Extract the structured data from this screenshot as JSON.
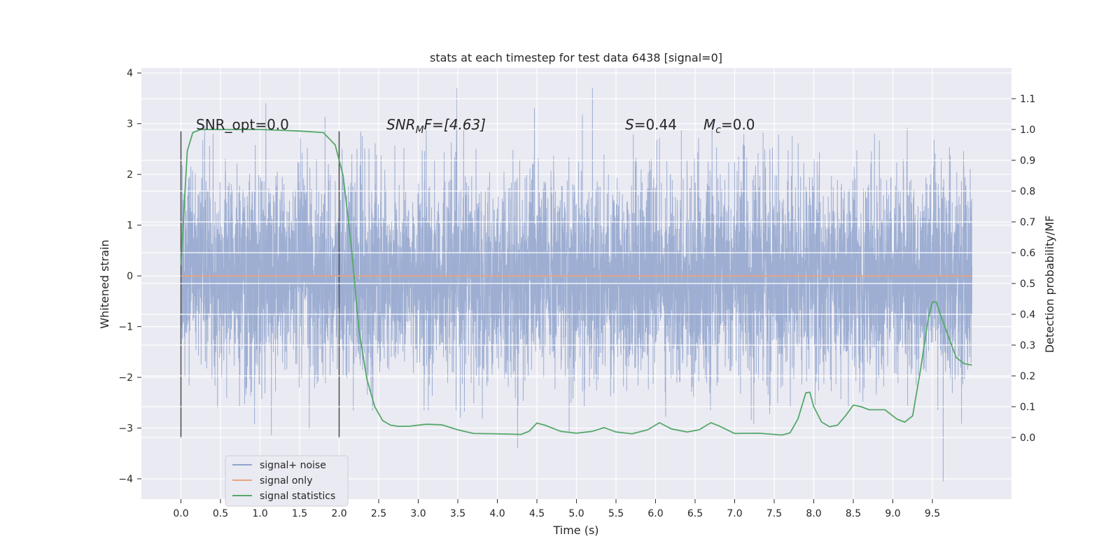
{
  "chart_data": {
    "type": "line",
    "title": "stats at each timestep for test data 6438 [signal=0]",
    "xlabel": "Time (s)",
    "ylabel": "Whitened strain",
    "y2label": "Detection probability/MF",
    "xlim": [
      -0.5,
      10.5
    ],
    "ylim": [
      -4.4,
      4.1
    ],
    "y2lim": [
      -0.2,
      1.2
    ],
    "x_ticks": [
      "0.0",
      "0.5",
      "1.0",
      "1.5",
      "2.0",
      "2.5",
      "3.0",
      "3.5",
      "4.0",
      "4.5",
      "5.0",
      "5.5",
      "6.0",
      "6.5",
      "7.0",
      "7.5",
      "8.0",
      "8.5",
      "9.0",
      "9.5"
    ],
    "y_ticks": [
      "4",
      "3",
      "2",
      "1",
      "0",
      "−1",
      "−2",
      "−3",
      "−4"
    ],
    "y2_ticks": [
      "1.1",
      "1.0",
      "0.9",
      "0.8",
      "0.7",
      "0.6",
      "0.5",
      "0.4",
      "0.3",
      "0.2",
      "0.1",
      "0.0"
    ],
    "grid": true,
    "legend_position": "lower-left",
    "annotations": {
      "snr_opt": "SNR_opt=0.0",
      "snr_mf_main": "SNR",
      "snr_mf_sub": "M",
      "snr_mf_rest": "F=[4.63]",
      "s_main": "S",
      "s_rest": "=0.44",
      "mc_main": "M",
      "mc_sub": "c",
      "mc_rest": "=0.0"
    },
    "vertical_lines_x": [
      0.0,
      2.0
    ],
    "series": [
      {
        "name": "signal+ noise",
        "color": "#8fa3cc",
        "axis": "left",
        "note_values": "noise samples drawn with standard deviation ~1 over 0–10 s",
        "t_range": [
          0.0,
          10.0
        ]
      },
      {
        "name": "signal only",
        "color": "#e8a47f",
        "axis": "left",
        "x": [
          0.0,
          10.0
        ],
        "y": [
          0.0,
          0.0
        ]
      },
      {
        "name": "signal statistics",
        "color": "#55a868",
        "axis": "right",
        "x": [
          0.0,
          0.08,
          0.15,
          0.25,
          0.4,
          0.6,
          1.0,
          1.5,
          1.8,
          1.95,
          2.05,
          2.15,
          2.25,
          2.35,
          2.45,
          2.55,
          2.65,
          2.75,
          2.9,
          3.1,
          3.3,
          3.5,
          3.7,
          4.0,
          4.3,
          4.4,
          4.5,
          4.6,
          4.8,
          5.0,
          5.2,
          5.35,
          5.5,
          5.7,
          5.9,
          6.05,
          6.2,
          6.4,
          6.55,
          6.7,
          6.8,
          7.0,
          7.3,
          7.6,
          7.7,
          7.8,
          7.9,
          7.95,
          8.0,
          8.1,
          8.2,
          8.3,
          8.4,
          8.5,
          8.6,
          8.7,
          8.9,
          9.05,
          9.15,
          9.25,
          9.35,
          9.45,
          9.5,
          9.55,
          9.6,
          9.7,
          9.8,
          9.9,
          10.0
        ],
        "y": [
          0.56,
          0.93,
          0.99,
          1.0,
          1.0,
          1.0,
          1.0,
          0.995,
          0.99,
          0.95,
          0.85,
          0.63,
          0.35,
          0.19,
          0.1,
          0.055,
          0.04,
          0.036,
          0.037,
          0.043,
          0.041,
          0.025,
          0.013,
          0.012,
          0.01,
          0.02,
          0.047,
          0.04,
          0.02,
          0.014,
          0.02,
          0.032,
          0.018,
          0.012,
          0.025,
          0.048,
          0.028,
          0.018,
          0.025,
          0.048,
          0.038,
          0.013,
          0.014,
          0.008,
          0.015,
          0.06,
          0.145,
          0.147,
          0.1,
          0.05,
          0.035,
          0.04,
          0.07,
          0.105,
          0.1,
          0.09,
          0.09,
          0.06,
          0.05,
          0.07,
          0.22,
          0.39,
          0.44,
          0.44,
          0.4,
          0.33,
          0.26,
          0.24,
          0.235
        ]
      }
    ]
  }
}
